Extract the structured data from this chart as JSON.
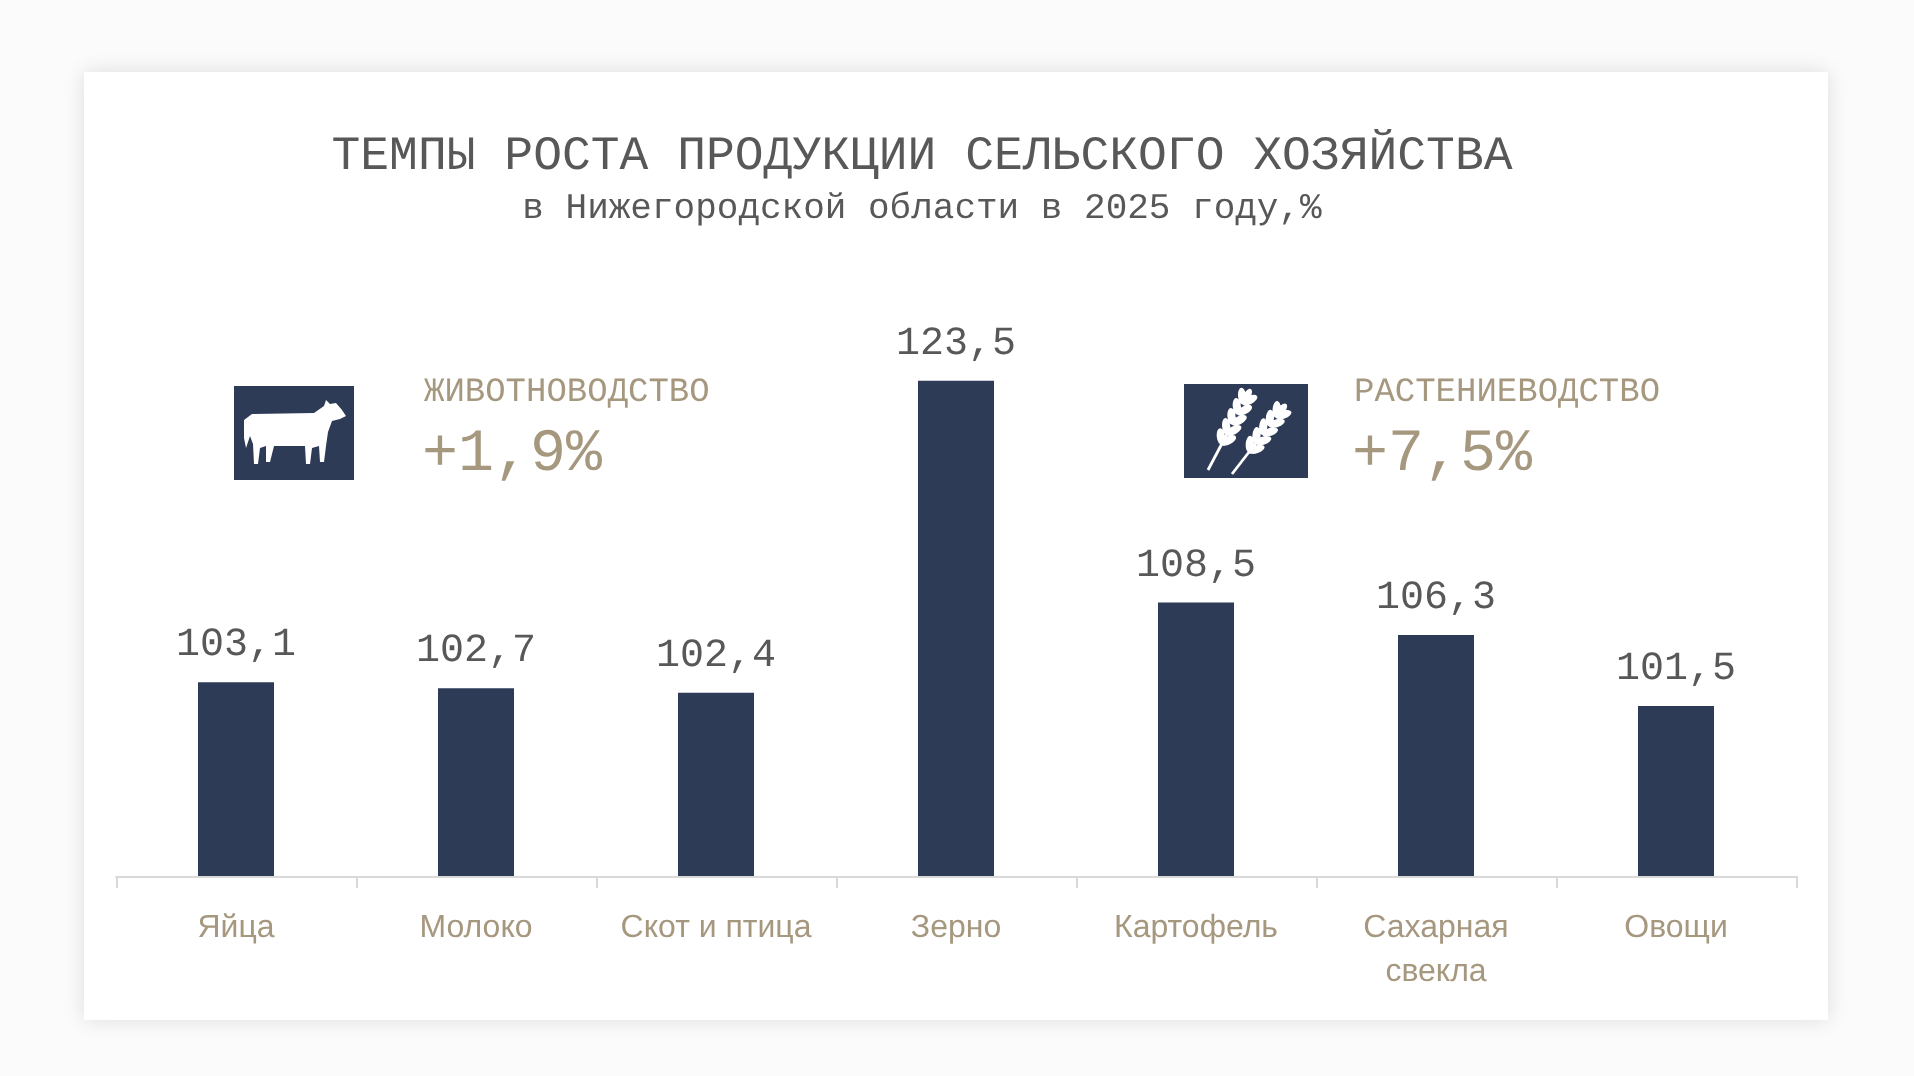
{
  "chart_data": {
    "type": "bar",
    "title": "ТЕМПЫ РОСТА ПРОДУКЦИИ СЕЛЬСКОГО ХОЗЯЙСТВА",
    "subtitle": "в Нижегородской области в 2025 году,%",
    "categories": [
      "Яйца",
      "Молоко",
      "Скот и птица",
      "Зерно",
      "Картофель",
      "Сахарная свекла",
      "Овощи"
    ],
    "values": [
      103.1,
      102.7,
      102.4,
      123.5,
      108.5,
      106.3,
      101.5
    ],
    "value_labels": [
      "103,1",
      "102,7",
      "102,4",
      "123,5",
      "108,5",
      "106,3",
      "101,5"
    ],
    "color": "#2e3b57",
    "ylim": [
      90,
      123.5
    ],
    "tick_labels": "x",
    "annotations": [
      "ЖИВОТНОВОДСТВО",
      "+1,9%",
      "РАСТЕНИЕВОДСТВО",
      "+7,5%"
    ]
  }
}
